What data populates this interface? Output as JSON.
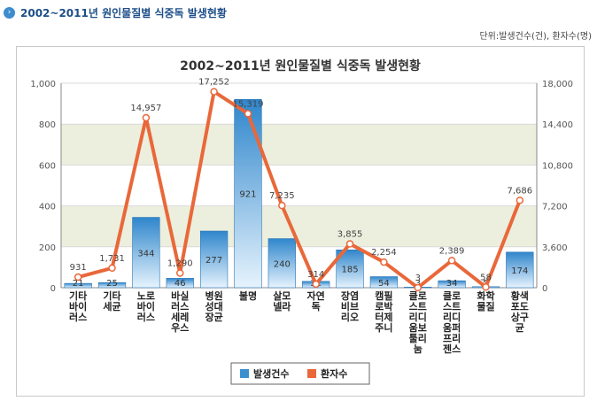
{
  "header": {
    "title": "2002~2011년 원인물질별 식중독 발생현황",
    "icon": "circle-arrow-icon"
  },
  "unit_note": "단위:발생건수(건), 환자수(명)",
  "chart_data": {
    "type": "bar",
    "title": "2002~2011년 원인물질별 식중독 발생현황",
    "categories": [
      [
        "기타",
        "바이",
        "러스"
      ],
      [
        "기타",
        "세균"
      ],
      [
        "노로",
        "바이",
        "러스"
      ],
      [
        "바실",
        "러스",
        "세레",
        "우스"
      ],
      [
        "병원",
        "성대",
        "장균"
      ],
      [
        "불명"
      ],
      [
        "살모",
        "넬라"
      ],
      [
        "자연",
        "독"
      ],
      [
        "장염",
        "비브",
        "리오"
      ],
      [
        "캠필",
        "로박",
        "터제",
        "주니"
      ],
      [
        "클로",
        "스트",
        "리디",
        "움보",
        "툴리",
        "눔"
      ],
      [
        "클로",
        "스트",
        "리디",
        "움퍼",
        "프리",
        "젠스"
      ],
      [
        "화학",
        "물질"
      ],
      [
        "황색",
        "포도",
        "상구",
        "균"
      ]
    ],
    "series": [
      {
        "name": "발생건수",
        "type": "bar",
        "axis": "left",
        "color": "#3a8fd0",
        "values": [
          21,
          25,
          344,
          46,
          277,
          921,
          240,
          31,
          185,
          54,
          3,
          34,
          5,
          174
        ],
        "labels": [
          "21",
          "25",
          "344",
          "46",
          "277",
          "921",
          "240",
          "31",
          "185",
          "54",
          "3",
          "34",
          "5",
          "174"
        ]
      },
      {
        "name": "환자수",
        "type": "line",
        "axis": "right",
        "color": "#e9683a",
        "values": [
          931,
          1731,
          14957,
          1290,
          17252,
          15319,
          7235,
          314,
          3855,
          2254,
          3,
          2389,
          58,
          7686
        ],
        "labels": [
          "931",
          "1,731",
          "14,957",
          "1,290",
          "17,252",
          "15,319",
          "7,235",
          "314",
          "3,855",
          "2,254",
          "3",
          "2,389",
          "58",
          "7,686"
        ]
      }
    ],
    "y_left": {
      "min": 0,
      "max": 1000,
      "ticks": [
        "0",
        "200",
        "400",
        "600",
        "800",
        "1,000"
      ]
    },
    "y_right": {
      "min": 0,
      "max": 18000,
      "ticks": [
        "0",
        "3,600",
        "7,200",
        "10,800",
        "14,400",
        "18,000"
      ]
    },
    "grid": true,
    "legend": "bottom"
  }
}
